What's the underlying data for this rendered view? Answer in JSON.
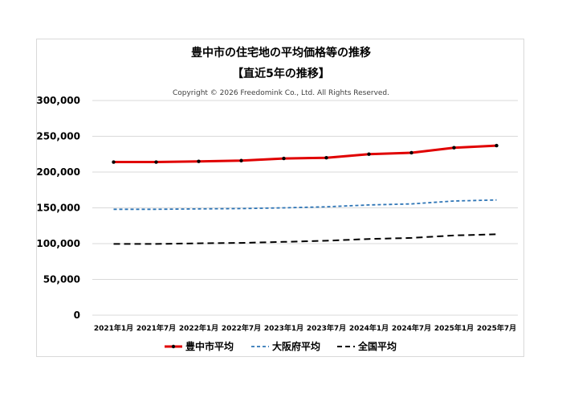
{
  "chart_data": {
    "type": "line",
    "title": "豊中市の住宅地の平均価格等の推移",
    "subtitle": "【直近5年の推移】",
    "copyright": "Copyright © 2026 Freedomink Co., Ltd. All Rights Reserved.",
    "categories": [
      "2021年1月",
      "2021年7月",
      "2022年1月",
      "2022年7月",
      "2023年1月",
      "2023年7月",
      "2024年1月",
      "2024年7月",
      "2025年1月",
      "2025年7月"
    ],
    "yticks": [
      "0",
      "50,000",
      "100,000",
      "150,000",
      "200,000",
      "250,000",
      "300,000"
    ],
    "ylim": [
      0,
      300000
    ],
    "grid": true,
    "legend_position": "bottom",
    "series": [
      {
        "name": "豊中市平均",
        "color": "#e00000",
        "style": "solid-markers",
        "values": [
          214000,
          214000,
          215000,
          216000,
          219000,
          220000,
          225000,
          227000,
          234000,
          237000
        ]
      },
      {
        "name": "大阪府平均",
        "color": "#2e75b6",
        "style": "dashed",
        "values": [
          148000,
          148000,
          148500,
          149000,
          150000,
          151500,
          154000,
          155500,
          159500,
          161000
        ]
      },
      {
        "name": "全国平均",
        "color": "#000000",
        "style": "dashed",
        "values": [
          99500,
          99500,
          100500,
          101000,
          102500,
          104000,
          106500,
          108000,
          111500,
          113000
        ]
      }
    ]
  }
}
